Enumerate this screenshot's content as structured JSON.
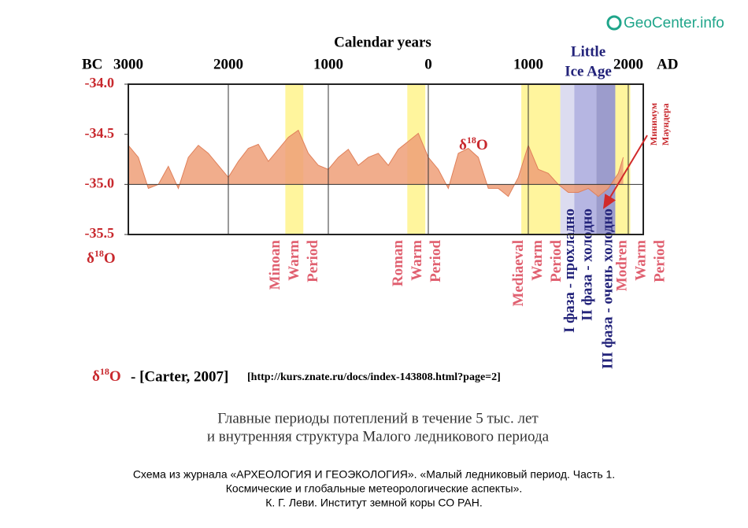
{
  "chart_data": {
    "type": "area",
    "logo": "GeoCenter.info",
    "x_label": "Calendar years",
    "x_left_label": "BC",
    "x_right_label": "AD",
    "era_label": [
      "Little",
      "Ice Age"
    ],
    "xlim": [
      -3000,
      2150
    ],
    "xticks": [
      {
        "value": -3000,
        "label": "3000"
      },
      {
        "value": -2000,
        "label": "2000"
      },
      {
        "value": -1000,
        "label": "1000"
      },
      0,
      1000,
      2000
    ],
    "ylim": [
      -35.5,
      -34.0
    ],
    "yticks": [
      {
        "value": -34.0,
        "label": "-34.0"
      },
      -34.5,
      {
        "value": -35.0,
        "label": "-35.0"
      },
      -35.5
    ],
    "y_label": [
      "δ",
      "18",
      "O"
    ],
    "annotation": [
      "δ",
      "18",
      "O"
    ],
    "fill_baseline": -35.0,
    "series": [
      {
        "color": "#ef9f78",
        "x": [
          -3000,
          -2900,
          -2800,
          -2700,
          -2600,
          -2500,
          -2400,
          -2300,
          -2200,
          -2100,
          -2000,
          -1900,
          -1800,
          -1700,
          -1600,
          -1500,
          -1400,
          -1300,
          -1200,
          -1100,
          -1000,
          -900,
          -800,
          -700,
          -600,
          -500,
          -400,
          -300,
          -200,
          -100,
          0,
          100,
          200,
          300,
          400,
          500,
          600,
          700,
          800,
          900,
          1000,
          1100,
          1200,
          1300,
          1400,
          1500,
          1600,
          1700,
          1800,
          1900,
          1950
        ],
        "values": [
          -34.61,
          -34.73,
          -35.04,
          -35.0,
          -34.82,
          -35.04,
          -34.73,
          -34.61,
          -34.69,
          -34.81,
          -34.93,
          -34.77,
          -34.64,
          -34.6,
          -34.77,
          -34.65,
          -34.53,
          -34.46,
          -34.69,
          -34.81,
          -34.85,
          -34.73,
          -34.65,
          -34.81,
          -34.73,
          -34.69,
          -34.81,
          -34.65,
          -34.57,
          -34.49,
          -34.73,
          -34.85,
          -35.04,
          -34.69,
          -34.64,
          -34.73,
          -35.04,
          -35.04,
          -35.12,
          -34.93,
          -34.61,
          -34.85,
          -34.89,
          -35.0,
          -35.08,
          -35.08,
          -35.04,
          -35.12,
          -35.04,
          -34.89,
          -34.73
        ]
      }
    ],
    "periods": [
      {
        "lines": [
          "Minoan",
          "Warm",
          "Period"
        ],
        "start": -1430,
        "end": -1250,
        "color": "#fff59d"
      },
      {
        "lines": [
          "Roman",
          "Warm",
          "Period"
        ],
        "start": -210,
        "end": -30,
        "color": "#fff59d"
      },
      {
        "lines": [
          "Mediaeval",
          "Warm",
          "Period"
        ],
        "start": 930,
        "end": 1320,
        "color": "#fff59d"
      },
      {
        "lines": [
          "Modren",
          "Warm",
          "Period"
        ],
        "start": 1870,
        "end": 2020,
        "color": "#fff59d"
      }
    ],
    "phases": [
      {
        "label": "I фаза - прохладно",
        "start": 1320,
        "end": 1460,
        "color": "#dcdcf0"
      },
      {
        "label": "II фаза - холодно",
        "start": 1460,
        "end": 1680,
        "color": "#b6b6e2"
      },
      {
        "label": "III фаза - очень холодно",
        "start": 1680,
        "end": 1870,
        "color": "#9c9ccc"
      }
    ],
    "maunder": [
      "Минимум",
      "Маундера"
    ],
    "source": {
      "symbol": [
        "δ",
        "18",
        "O"
      ],
      "ref": "- [Carter, 2007]",
      "url": "[http://kurs.znate.ru/docs/index-143808.html?page=2]"
    },
    "caption": [
      "Главные периоды потеплений в течение 5 тыс. лет",
      "и внутренняя структура Малого ледникового периода"
    ],
    "footer": [
      "Схема из журнала «АРХЕОЛОГИЯ И ГЕОЭКОЛОГИЯ». «Малый ледниковый период. Часть 1.",
      "Космические и глобальные метеорологические аспекты».",
      "К. Г. Леви. Институт земной коры СО РАН."
    ]
  }
}
